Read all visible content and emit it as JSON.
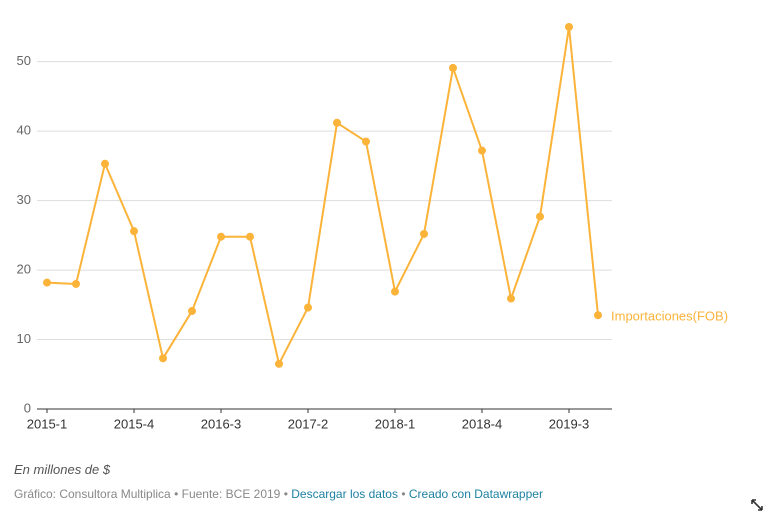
{
  "chart_data": {
    "type": "line",
    "categories": [
      "2015-1",
      null,
      null,
      "2015-4",
      null,
      null,
      "2016-3",
      null,
      null,
      "2017-2",
      null,
      null,
      "2018-1",
      null,
      null,
      "2018-4",
      null,
      null,
      "2019-3",
      null
    ],
    "series": [
      {
        "name": "Importaciones(FOB)",
        "color": "#fbb33a",
        "values": [
          18.2,
          18.0,
          35.3,
          25.6,
          7.3,
          14.1,
          24.8,
          24.8,
          6.5,
          14.6,
          41.2,
          38.5,
          16.9,
          25.2,
          49.1,
          37.2,
          15.9,
          27.7,
          55.0,
          13.5
        ]
      }
    ],
    "ylim": [
      0,
      56
    ],
    "yticks": [
      0,
      10,
      20,
      30,
      40,
      50
    ],
    "grid": true,
    "notes": "En millones de $",
    "footer": {
      "chart_by": "Gráfico: Consultora Multiplica",
      "source": "Fuente: BCE 2019",
      "separator": "•",
      "download": "Descargar los datos",
      "created": "Creado con Datawrapper"
    }
  }
}
